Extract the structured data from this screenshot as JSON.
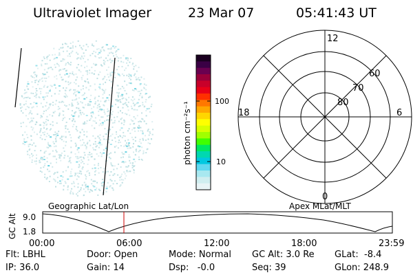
{
  "header": {
    "title": "Ultraviolet Imager",
    "date": "23 Mar 07",
    "time": "05:41:43 UT"
  },
  "colorbar": {
    "unit_label": "photon cm⁻²s⁻¹",
    "ticks": [
      "100",
      "10"
    ],
    "colors": [
      "#1a0020",
      "#3a0045",
      "#6a0050",
      "#9a003a",
      "#c8002a",
      "#e80018",
      "#ff3000",
      "#ff7800",
      "#ffa800",
      "#ffd600",
      "#ffff00",
      "#d8ff00",
      "#a0ff00",
      "#40ff00",
      "#00e860",
      "#00d8b0",
      "#00c8e0",
      "#60d8f0",
      "#a8e8f0",
      "#d0eef0",
      "#e8f4f6"
    ]
  },
  "polar": {
    "mlt_labels": [
      "12",
      "18",
      "6",
      "0"
    ],
    "lat_labels": [
      "60",
      "70",
      "80"
    ]
  },
  "timeline": {
    "left_label": "Geographic Lat/Lon",
    "right_label": "Apex MLat/MLT",
    "y_axis_label": "GC Alt",
    "y_ticks": [
      "9.0",
      "1.8"
    ],
    "x_ticks": [
      "00:00",
      "06:00",
      "12:00",
      "18:00",
      "23:59"
    ]
  },
  "status": {
    "flt": "Flt: LBHL",
    "ip": "IP: 36.0",
    "door": "Door: Open",
    "gain": "Gain: 14",
    "mode": "Mode: Normal",
    "dsp": "Dsp:   -0.0",
    "gc_alt": "GC Alt: 3.0 Re",
    "seq": "Seq: 39",
    "glat": "GLat:  -8.4",
    "glon": "GLon: 248.9"
  },
  "colors": {
    "marker": "#cc0000",
    "speckle": "#b8dde0",
    "speckle_bright": "#60d0e0"
  }
}
